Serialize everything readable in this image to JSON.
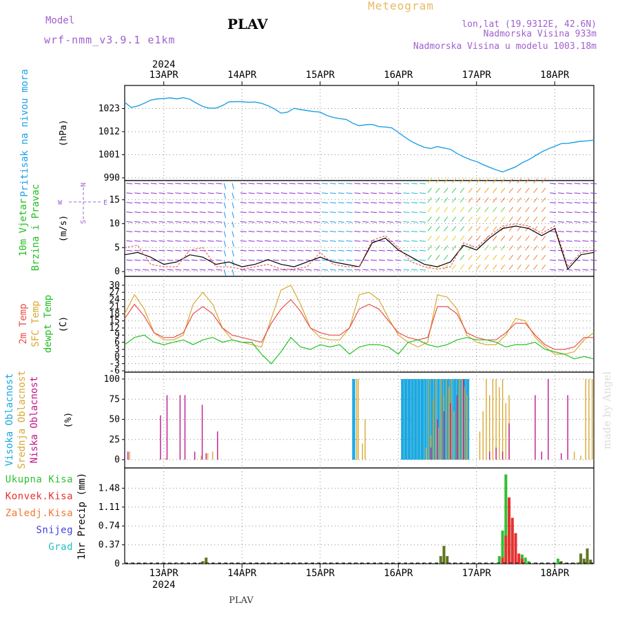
{
  "header": {
    "model_label": "Model",
    "model_name": "wrf-nmm_v3.9.1 e1km",
    "station": "PLAV",
    "product": "Meteogram",
    "coords": "lon,lat (19.9312E, 42.6N)",
    "elevation": "Nadmorska Visina 933m",
    "model_elevation": "Nadmorska Visina u modelu 1003.18m"
  },
  "footer": {
    "station": "PLAV",
    "credit": "made by Angel"
  },
  "colors": {
    "pressure": "#1ea0e6",
    "temp_2m": "#e8504a",
    "temp_sfc": "#d8a830",
    "dewpt": "#20c020",
    "cloud_high": "#1aa8e0",
    "cloud_mid": "#d8a830",
    "cloud_low": "#c0168c",
    "wind_speed": "#000000",
    "wind_gust": "#e84040",
    "precip_total": "#30c030",
    "precip_conv": "#e83030",
    "precip_frz": "#f07830",
    "precip_snow": "#4040e0",
    "precip_hail": "#20c0c0",
    "precip_bar": "#607820"
  },
  "chart_data": [
    {
      "type": "line",
      "panel": "pressure",
      "label_lines": [
        "Pritisak na nivou mora"
      ],
      "unit": "(hPa)",
      "xlim": [
        0,
        144
      ],
      "x_tick_hours": [
        12,
        36,
        60,
        84,
        108,
        132
      ],
      "x_tick_labels": [
        "13APR",
        "14APR",
        "15APR",
        "16APR",
        "17APR",
        "18APR"
      ],
      "x_year_label": "2024",
      "ylim": [
        990,
        1034
      ],
      "yticks": [
        990,
        1001,
        1012,
        1023
      ],
      "grid": true,
      "series": [
        {
          "key": "pressure",
          "x": [
            0,
            2,
            4,
            6,
            8,
            10,
            12,
            14,
            16,
            18,
            20,
            22,
            24,
            26,
            28,
            30,
            32,
            34,
            36,
            38,
            40,
            42,
            44,
            46,
            48,
            50,
            52,
            54,
            56,
            58,
            60,
            62,
            64,
            66,
            68,
            70,
            72,
            74,
            76,
            78,
            80,
            82,
            84,
            86,
            88,
            90,
            92,
            94,
            96,
            98,
            100,
            102,
            104,
            106,
            108,
            110,
            112,
            114,
            116,
            118,
            120,
            122,
            124,
            126,
            128,
            130,
            132,
            134,
            136,
            138,
            140,
            142,
            144
          ],
          "y": [
            1026.0,
            1023.5,
            1024.2,
            1025.5,
            1027.0,
            1027.6,
            1027.8,
            1028.1,
            1027.6,
            1028.2,
            1027.4,
            1025.6,
            1024.0,
            1023.2,
            1023.2,
            1024.4,
            1026.2,
            1026.3,
            1026.3,
            1026.0,
            1026.1,
            1025.5,
            1024.3,
            1022.8,
            1020.8,
            1021.3,
            1023.1,
            1022.5,
            1022.0,
            1021.6,
            1021.3,
            1019.7,
            1018.8,
            1018.2,
            1017.8,
            1016.0,
            1014.8,
            1015.3,
            1015.4,
            1014.4,
            1014.2,
            1013.8,
            1011.6,
            1009.4,
            1007.3,
            1005.8,
            1004.5,
            1004.0,
            1004.9,
            1004.2,
            1003.6,
            1001.6,
            1000.0,
            998.7,
            997.7,
            996.3,
            995.0,
            993.8,
            992.8,
            994.0,
            995.2,
            997.2,
            998.6,
            1000.5,
            1002.3,
            1003.8,
            1005.0,
            1006.3,
            1006.4,
            1006.9,
            1007.4,
            1007.6,
            1008.0
          ]
        }
      ]
    },
    {
      "type": "barbs",
      "panel": "wind",
      "label_lines": [
        "10m Vjetar",
        "Brzina i Pravac"
      ],
      "unit": "(m/s)",
      "compass": {
        "n": "N",
        "s": "S",
        "e": "E",
        "w": "W"
      },
      "xlim": [
        0,
        144
      ],
      "ylim": [
        -1,
        19
      ],
      "yticks": [
        0,
        5,
        10,
        15
      ],
      "grid": true,
      "series": [
        {
          "key": "wind_speed",
          "x": [
            0,
            4,
            8,
            12,
            16,
            20,
            24,
            28,
            32,
            36,
            40,
            44,
            48,
            52,
            56,
            60,
            64,
            68,
            72,
            76,
            80,
            84,
            88,
            92,
            96,
            100,
            104,
            108,
            112,
            116,
            120,
            124,
            128,
            132,
            136,
            140,
            144
          ],
          "y": [
            3.5,
            4.0,
            3.0,
            1.5,
            2.0,
            3.5,
            3.0,
            1.5,
            2.0,
            1.0,
            1.5,
            2.5,
            1.5,
            1.0,
            2.0,
            3.0,
            2.0,
            1.5,
            1.0,
            6.0,
            7.0,
            4.5,
            3.0,
            1.5,
            1.0,
            2.0,
            5.5,
            4.5,
            7.0,
            9.0,
            9.5,
            9.0,
            7.5,
            9.0,
            0.5,
            3.5,
            4.0
          ]
        },
        {
          "key": "wind_gust",
          "x": [
            0,
            4,
            8,
            12,
            16,
            20,
            24,
            28,
            32,
            36,
            40,
            44,
            48,
            52,
            56,
            60,
            64,
            68,
            72,
            76,
            80,
            84,
            88,
            92,
            96,
            100,
            104,
            108,
            112,
            116,
            120,
            124,
            128,
            132,
            136,
            140,
            144
          ],
          "y": [
            5.0,
            5.5,
            1.5,
            1.0,
            1.0,
            4.5,
            5.0,
            1.0,
            1.0,
            0.5,
            1.0,
            1.5,
            0.5,
            0.5,
            1.0,
            4.0,
            1.5,
            1.0,
            1.0,
            6.5,
            7.5,
            5.0,
            2.0,
            1.0,
            0.5,
            1.0,
            6.0,
            5.0,
            7.5,
            9.5,
            10.0,
            9.5,
            8.0,
            9.5,
            1.0,
            4.0,
            4.5
          ]
        }
      ]
    },
    {
      "type": "line",
      "panel": "temperature",
      "label_lines": [
        "2m Temp",
        "SFC Temp",
        "dewpt Temp"
      ],
      "unit": "(C)",
      "xlim": [
        0,
        144
      ],
      "ylim": [
        -6,
        32
      ],
      "yticks": [
        -6,
        -3,
        0,
        3,
        6,
        9,
        12,
        15,
        18,
        21,
        24,
        27,
        30
      ],
      "grid": true,
      "series": [
        {
          "key": "temp_sfc",
          "x": [
            0,
            3,
            6,
            9,
            12,
            15,
            18,
            21,
            24,
            27,
            30,
            33,
            36,
            39,
            42,
            45,
            48,
            51,
            54,
            57,
            60,
            63,
            66,
            69,
            72,
            75,
            78,
            81,
            84,
            87,
            90,
            93,
            96,
            99,
            102,
            105,
            108,
            111,
            114,
            117,
            120,
            123,
            126,
            129,
            132,
            135,
            138,
            141,
            144
          ],
          "y": [
            18,
            26,
            20,
            10,
            7,
            7,
            9,
            22,
            27,
            22,
            12,
            7,
            6,
            5,
            4,
            16,
            28,
            30,
            22,
            12,
            8,
            7,
            7,
            12,
            26,
            27,
            24,
            16,
            9,
            6,
            4,
            6,
            26,
            25,
            20,
            9,
            6,
            5,
            5,
            9,
            16,
            15,
            8,
            4,
            1,
            1,
            2,
            7,
            10
          ]
        },
        {
          "key": "temp_2m",
          "x": [
            0,
            3,
            6,
            9,
            12,
            15,
            18,
            21,
            24,
            27,
            30,
            33,
            36,
            39,
            42,
            45,
            48,
            51,
            54,
            57,
            60,
            63,
            66,
            69,
            72,
            75,
            78,
            81,
            84,
            87,
            90,
            93,
            96,
            99,
            102,
            105,
            108,
            111,
            114,
            117,
            120,
            123,
            126,
            129,
            132,
            135,
            138,
            141,
            144
          ],
          "y": [
            16,
            22,
            17,
            10,
            8,
            8,
            10,
            18,
            21,
            18,
            12,
            9,
            8,
            7,
            6,
            14,
            20,
            24,
            19,
            12,
            10,
            9,
            9,
            12,
            20,
            22,
            20,
            15,
            10,
            8,
            7,
            8,
            21,
            21,
            18,
            10,
            8,
            7,
            7,
            10,
            14,
            14,
            9,
            5,
            3,
            3,
            4,
            8,
            8
          ]
        },
        {
          "key": "dewpt",
          "x": [
            0,
            3,
            6,
            9,
            12,
            15,
            18,
            21,
            24,
            27,
            30,
            33,
            36,
            39,
            42,
            45,
            48,
            51,
            54,
            57,
            60,
            63,
            66,
            69,
            72,
            75,
            78,
            81,
            84,
            87,
            90,
            93,
            96,
            99,
            102,
            105,
            108,
            111,
            114,
            117,
            120,
            123,
            126,
            129,
            132,
            135,
            138,
            141,
            144
          ],
          "y": [
            5,
            8,
            9,
            6,
            5,
            6,
            7,
            5,
            7,
            8,
            6,
            7,
            6,
            6,
            1,
            -3,
            2,
            8,
            4,
            3,
            5,
            4,
            5,
            1,
            4,
            5,
            5,
            4,
            1,
            6,
            7,
            5,
            4,
            5,
            7,
            8,
            7,
            7,
            6,
            4,
            5,
            5,
            6,
            3,
            2,
            1,
            -1,
            0,
            -1
          ]
        }
      ]
    },
    {
      "type": "bar",
      "panel": "clouds",
      "label_lines": [
        "Visoka Oblacnost",
        "Srednja Oblacnost",
        "Niska Oblacnost"
      ],
      "unit": "(%)",
      "xlim": [
        0,
        144
      ],
      "ylim": [
        0,
        100
      ],
      "yticks": [
        0,
        25,
        50,
        75,
        100
      ],
      "grid": true,
      "series": [
        {
          "key": "cloud_high",
          "x": [
            70.0,
            70.3,
            70.6,
            85.0,
            85.3,
            85.6,
            86.0,
            86.3,
            86.6,
            87.0,
            87.3,
            87.6,
            88.0,
            88.3,
            88.6,
            89.0,
            89.3,
            89.6,
            90.0,
            90.3,
            90.6,
            91.0,
            91.3,
            91.6,
            92.0,
            92.3,
            92.6,
            93.0,
            93.3,
            93.6,
            94.0,
            94.3,
            94.6,
            95.0,
            95.3,
            95.6,
            96.0,
            96.3,
            96.6,
            97.0,
            97.3,
            97.6,
            98.0,
            98.3,
            98.6,
            99.0,
            99.3,
            99.6,
            100.0,
            100.3,
            100.6,
            101.0,
            101.3,
            101.6,
            102.0,
            102.3,
            102.6,
            103.0,
            103.3,
            103.6,
            104.0,
            104.3,
            104.6,
            105.0,
            105.3,
            105.6
          ],
          "y": [
            100,
            100,
            100,
            100,
            100,
            100,
            100,
            100,
            100,
            100,
            100,
            100,
            100,
            100,
            100,
            100,
            100,
            100,
            100,
            100,
            100,
            100,
            100,
            100,
            100,
            100,
            100,
            100,
            100,
            100,
            100,
            100,
            100,
            100,
            100,
            100,
            100,
            100,
            100,
            100,
            100,
            100,
            100,
            100,
            100,
            100,
            100,
            100,
            100,
            100,
            100,
            100,
            100,
            100,
            100,
            100,
            100,
            100,
            100,
            100,
            100,
            100,
            100,
            100,
            100,
            100
          ]
        },
        {
          "key": "cloud_mid",
          "x": [
            1.5,
            12.5,
            23.5,
            25.5,
            27.0,
            71.2,
            71.7,
            73.0,
            73.8,
            92.5,
            93.2,
            94.0,
            94.8,
            95.5,
            96.3,
            97.1,
            97.9,
            98.7,
            99.5,
            100.3,
            101.1,
            101.9,
            102.7,
            103.5,
            104.3,
            105.1,
            109.0,
            110.0,
            111.0,
            112.0,
            113.0,
            114.0,
            115.0,
            116.0,
            117.0,
            118.0,
            138.0,
            140.0,
            141.5,
            142.5,
            143.5
          ],
          "y": [
            10,
            2,
            5,
            8,
            10,
            100,
            100,
            20,
            50,
            15,
            100,
            30,
            75,
            100,
            40,
            100,
            80,
            100,
            90,
            100,
            60,
            70,
            100,
            100,
            90,
            80,
            35,
            60,
            100,
            80,
            100,
            100,
            90,
            100,
            70,
            80,
            10,
            5,
            100,
            100,
            100
          ]
        },
        {
          "key": "cloud_low",
          "x": [
            1.0,
            11.0,
            13.0,
            17.0,
            18.5,
            21.5,
            23.8,
            25.0,
            28.5,
            94.0,
            96.0,
            98.0,
            100.0,
            102.0,
            104.0,
            112.0,
            114.0,
            116.0,
            118.0,
            126.0,
            128.0,
            130.0,
            134.0,
            136.0
          ],
          "y": [
            10,
            55,
            80,
            80,
            80,
            10,
            68,
            8,
            35,
            15,
            50,
            60,
            70,
            80,
            100,
            10,
            15,
            10,
            45,
            80,
            10,
            100,
            8,
            80
          ]
        }
      ]
    },
    {
      "type": "bar",
      "panel": "precipitation",
      "legend": [
        "Ukupna Kisa",
        "Konvek.Kisa",
        "Zaledj.Kisa",
        "Snijeg",
        "Grad"
      ],
      "unit": "1hr Precip (mm)",
      "xlim": [
        0,
        144
      ],
      "ylim": [
        0,
        1.85
      ],
      "yticks": [
        0,
        0.37,
        0.74,
        1.11,
        1.48
      ],
      "grid": true,
      "series": [
        {
          "key": "precip_bar",
          "x": [
            16,
            24,
            25,
            97,
            98,
            99,
            134,
            139,
            140,
            141,
            142,
            143
          ],
          "y": [
            0.01,
            0.05,
            0.12,
            0.15,
            0.35,
            0.15,
            0.05,
            0.02,
            0.2,
            0.1,
            0.3,
            0.08
          ]
        },
        {
          "key": "precip_total",
          "x": [
            115,
            116,
            117,
            118,
            119,
            120,
            121,
            122,
            123,
            124,
            133
          ],
          "y": [
            0.15,
            0.65,
            1.75,
            1.05,
            0.75,
            0.35,
            0.1,
            0.18,
            0.12,
            0.05,
            0.1
          ]
        },
        {
          "key": "precip_conv",
          "x": [
            116,
            117,
            118,
            119,
            120,
            121,
            122
          ],
          "y": [
            0.12,
            0.55,
            1.3,
            0.9,
            0.6,
            0.2,
            0.1
          ]
        }
      ]
    }
  ]
}
